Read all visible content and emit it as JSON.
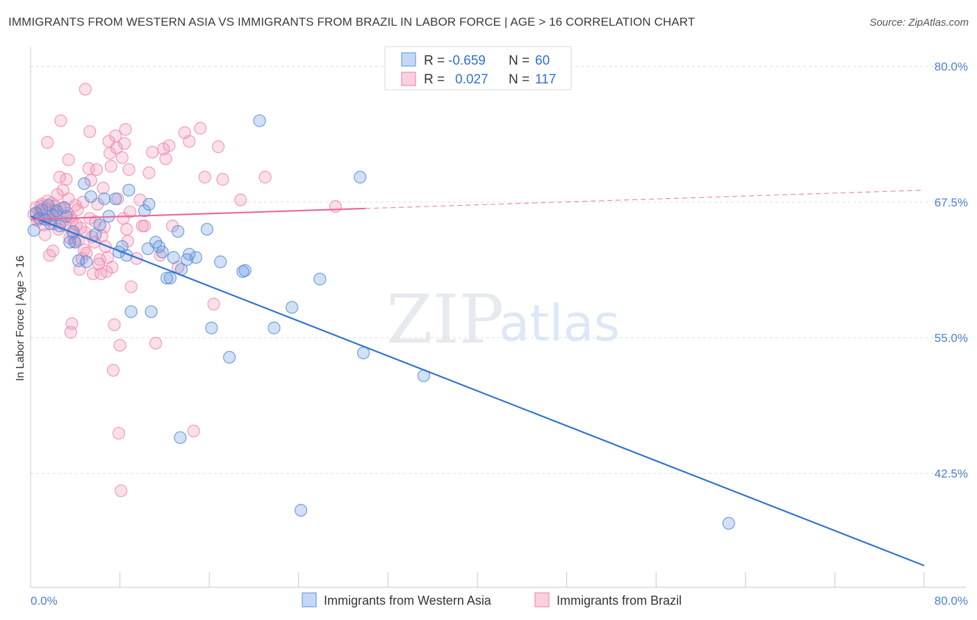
{
  "header": {
    "title": "IMMIGRANTS FROM WESTERN ASIA VS IMMIGRANTS FROM BRAZIL IN LABOR FORCE | AGE > 16 CORRELATION CHART",
    "source": "Source: ZipAtlas.com"
  },
  "watermark": {
    "zip": "ZIP",
    "atlas": "atlas"
  },
  "legend": {
    "rows": [
      {
        "r_label": "R =",
        "r_value": "-0.659",
        "n_label": "N =",
        "n_value": "60"
      },
      {
        "r_label": "R =",
        "r_value": "0.027",
        "n_label": "N =",
        "n_value": "117"
      }
    ]
  },
  "chart_data": {
    "type": "scatter",
    "title": "IMMIGRANTS FROM WESTERN ASIA VS IMMIGRANTS FROM BRAZIL IN LABOR FORCE | AGE > 16 CORRELATION CHART",
    "ylabel": "In Labor Force | Age > 16",
    "xlabel": "",
    "xlim": [
      0,
      80
    ],
    "ylim": [
      32,
      81
    ],
    "x_tick_labels": [
      "0.0%",
      "80.0%"
    ],
    "y_ticks": [
      42.5,
      55.0,
      67.5,
      80.0
    ],
    "y_tick_labels": [
      "42.5%",
      "55.0%",
      "67.5%",
      "80.0%"
    ],
    "grid": true,
    "legend_position": "top-center",
    "colors": {
      "western_asia": "#5b8fdc",
      "brazil": "#f08cb0",
      "western_asia_line": "#2f72d2",
      "brazil_line": "#e86a97"
    },
    "series": [
      {
        "name": "Immigrants from Western Asia",
        "r": -0.659,
        "n": 60,
        "trend": {
          "x0": 0,
          "y0": 66.2,
          "x1": 80,
          "y1": 34.0,
          "dashed_from": null
        },
        "points": [
          [
            0.5,
            66.5
          ],
          [
            0.8,
            66.0
          ],
          [
            1.0,
            66.8
          ],
          [
            1.3,
            65.9
          ],
          [
            1.6,
            67.2
          ],
          [
            1.8,
            65.5
          ],
          [
            2.0,
            66.3
          ],
          [
            2.3,
            66.7
          ],
          [
            2.6,
            65.3
          ],
          [
            3.0,
            67.0
          ],
          [
            3.2,
            66.2
          ],
          [
            3.5,
            63.8
          ],
          [
            3.8,
            64.8
          ],
          [
            4.0,
            63.8
          ],
          [
            4.3,
            62.1
          ],
          [
            4.8,
            69.2
          ],
          [
            5.0,
            62.0
          ],
          [
            5.4,
            68.0
          ],
          [
            5.8,
            64.5
          ],
          [
            6.2,
            65.4
          ],
          [
            6.6,
            67.8
          ],
          [
            7.0,
            66.2
          ],
          [
            7.6,
            67.8
          ],
          [
            7.9,
            62.9
          ],
          [
            8.2,
            63.4
          ],
          [
            8.6,
            62.6
          ],
          [
            8.8,
            68.6
          ],
          [
            9.0,
            57.4
          ],
          [
            10.2,
            66.7
          ],
          [
            10.5,
            63.2
          ],
          [
            10.6,
            67.3
          ],
          [
            10.8,
            57.4
          ],
          [
            11.2,
            63.8
          ],
          [
            11.5,
            63.4
          ],
          [
            11.8,
            62.9
          ],
          [
            12.2,
            60.5
          ],
          [
            12.5,
            60.5
          ],
          [
            12.8,
            62.4
          ],
          [
            13.2,
            64.8
          ],
          [
            13.5,
            61.3
          ],
          [
            14.0,
            62.2
          ],
          [
            14.2,
            62.7
          ],
          [
            14.8,
            62.4
          ],
          [
            15.8,
            65.0
          ],
          [
            16.2,
            55.9
          ],
          [
            17.0,
            62.0
          ],
          [
            17.8,
            53.2
          ],
          [
            19.0,
            61.1
          ],
          [
            19.2,
            61.2
          ],
          [
            20.5,
            75.0
          ],
          [
            21.8,
            55.9
          ],
          [
            23.4,
            57.8
          ],
          [
            24.2,
            39.1
          ],
          [
            25.9,
            60.4
          ],
          [
            29.5,
            69.8
          ],
          [
            29.8,
            53.6
          ],
          [
            35.2,
            51.5
          ],
          [
            13.4,
            45.8
          ],
          [
            62.5,
            37.9
          ],
          [
            0.3,
            64.9
          ]
        ]
      },
      {
        "name": "Immigrants from Brazil",
        "r": 0.027,
        "n": 117,
        "trend": {
          "x0": 0,
          "y0": 65.9,
          "x1": 80,
          "y1": 68.6,
          "dashed_from": 30
        },
        "points": [
          [
            0.3,
            66.4
          ],
          [
            0.5,
            67.0
          ],
          [
            0.6,
            65.8
          ],
          [
            0.8,
            66.6
          ],
          [
            1.0,
            67.3
          ],
          [
            1.1,
            66.0
          ],
          [
            1.2,
            65.4
          ],
          [
            1.4,
            66.9
          ],
          [
            1.5,
            67.6
          ],
          [
            1.6,
            66.2
          ],
          [
            1.8,
            65.9
          ],
          [
            1.9,
            67.4
          ],
          [
            2.0,
            66.7
          ],
          [
            2.1,
            65.5
          ],
          [
            2.2,
            67.1
          ],
          [
            2.3,
            66.3
          ],
          [
            2.4,
            68.2
          ],
          [
            2.5,
            65.0
          ],
          [
            2.6,
            69.8
          ],
          [
            2.7,
            66.9
          ],
          [
            2.8,
            65.7
          ],
          [
            2.9,
            68.6
          ],
          [
            3.0,
            67.0
          ],
          [
            3.1,
            65.3
          ],
          [
            3.2,
            69.6
          ],
          [
            3.3,
            66.5
          ],
          [
            3.4,
            67.8
          ],
          [
            3.5,
            64.2
          ],
          [
            3.6,
            66.1
          ],
          [
            3.7,
            65.8
          ],
          [
            3.8,
            64.6
          ],
          [
            3.9,
            63.9
          ],
          [
            4.0,
            67.2
          ],
          [
            4.1,
            65.4
          ],
          [
            4.2,
            66.8
          ],
          [
            4.3,
            64.0
          ],
          [
            4.4,
            61.3
          ],
          [
            4.5,
            65.1
          ],
          [
            4.6,
            62.3
          ],
          [
            4.7,
            67.5
          ],
          [
            4.8,
            63.1
          ],
          [
            4.9,
            64.7
          ],
          [
            5.0,
            62.8
          ],
          [
            5.2,
            70.6
          ],
          [
            5.3,
            66.0
          ],
          [
            5.4,
            69.5
          ],
          [
            5.5,
            64.3
          ],
          [
            5.6,
            60.9
          ],
          [
            5.7,
            63.8
          ],
          [
            5.8,
            65.7
          ],
          [
            5.9,
            70.5
          ],
          [
            6.0,
            67.3
          ],
          [
            6.1,
            61.8
          ],
          [
            6.2,
            62.2
          ],
          [
            6.3,
            60.9
          ],
          [
            6.4,
            64.4
          ],
          [
            6.5,
            68.8
          ],
          [
            6.6,
            65.2
          ],
          [
            6.7,
            63.4
          ],
          [
            6.8,
            61.1
          ],
          [
            6.9,
            62.4
          ],
          [
            7.0,
            73.1
          ],
          [
            7.1,
            72.0
          ],
          [
            7.2,
            70.8
          ],
          [
            7.3,
            61.5
          ],
          [
            7.4,
            52.0
          ],
          [
            7.5,
            56.2
          ],
          [
            7.6,
            73.6
          ],
          [
            7.7,
            72.5
          ],
          [
            7.8,
            67.8
          ],
          [
            7.9,
            46.2
          ],
          [
            8.0,
            54.3
          ],
          [
            8.1,
            40.9
          ],
          [
            8.2,
            71.6
          ],
          [
            8.3,
            66.0
          ],
          [
            8.4,
            72.9
          ],
          [
            8.5,
            74.2
          ],
          [
            8.6,
            65.0
          ],
          [
            8.7,
            63.9
          ],
          [
            8.8,
            70.5
          ],
          [
            8.9,
            66.6
          ],
          [
            9.0,
            59.7
          ],
          [
            9.5,
            62.3
          ],
          [
            9.8,
            67.7
          ],
          [
            10.0,
            65.3
          ],
          [
            10.2,
            65.3
          ],
          [
            10.6,
            70.2
          ],
          [
            10.9,
            72.1
          ],
          [
            11.2,
            54.5
          ],
          [
            11.6,
            62.6
          ],
          [
            11.9,
            72.4
          ],
          [
            12.1,
            71.5
          ],
          [
            12.4,
            72.7
          ],
          [
            12.7,
            65.3
          ],
          [
            13.2,
            61.5
          ],
          [
            13.8,
            73.9
          ],
          [
            14.2,
            73.1
          ],
          [
            14.6,
            46.4
          ],
          [
            15.2,
            74.3
          ],
          [
            15.6,
            69.8
          ],
          [
            16.4,
            58.1
          ],
          [
            16.8,
            72.6
          ],
          [
            17.2,
            69.6
          ],
          [
            18.8,
            67.7
          ],
          [
            21.0,
            69.8
          ],
          [
            27.3,
            67.1
          ],
          [
            1.5,
            73.0
          ],
          [
            2.7,
            75.0
          ],
          [
            3.4,
            71.4
          ],
          [
            4.9,
            77.9
          ],
          [
            5.3,
            74.0
          ],
          [
            3.6,
            55.5
          ],
          [
            3.7,
            56.3
          ],
          [
            2.0,
            63.0
          ],
          [
            1.7,
            62.6
          ],
          [
            1.3,
            64.5
          ],
          [
            0.9,
            67.1
          ],
          [
            0.7,
            66.0
          ]
        ]
      }
    ]
  },
  "bottom_legend": {
    "items": [
      "Immigrants from Western Asia",
      "Immigrants from Brazil"
    ]
  }
}
